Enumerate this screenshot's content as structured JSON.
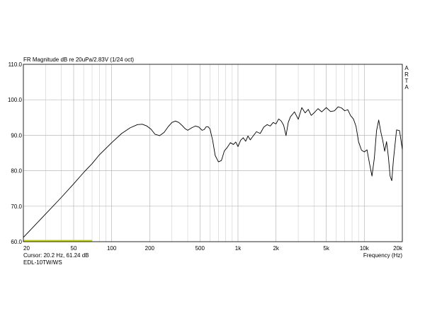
{
  "chart_data": {
    "type": "line",
    "title": "FR Magnitude dB re 20uPa/2.83V (1/24 oct)",
    "xlabel": "Frequency (Hz)",
    "ylabel": "",
    "x_scale": "log",
    "xlim": [
      20,
      20000
    ],
    "ylim": [
      60,
      110
    ],
    "grid": true,
    "brand_vertical": [
      "A",
      "R",
      "T",
      "A"
    ],
    "x_tick_values": [
      20,
      50,
      100,
      200,
      500,
      1000,
      2000,
      5000,
      10000,
      20000
    ],
    "x_tick_labels": [
      "20",
      "50",
      "100",
      "200",
      "500",
      "1k",
      "2k",
      "5k",
      "10k",
      "20k"
    ],
    "x_minor_grid": [
      30,
      40,
      60,
      70,
      80,
      90,
      300,
      400,
      600,
      700,
      800,
      900,
      3000,
      4000,
      6000,
      7000,
      8000,
      9000
    ],
    "y_tick_values": [
      60,
      70,
      80,
      90,
      100,
      110
    ],
    "y_tick_labels": [
      "60.0",
      "70.0",
      "80.0",
      "90.0",
      "100.0",
      "110.0"
    ],
    "cursor_text": "Cursor: 20.2 Hz, 61.24 dB",
    "measurement_name": "EDL-10TW/WS",
    "marker_band": {
      "from_hz": 20,
      "to_hz": 70,
      "db": 60.3,
      "color": "#c8d400"
    },
    "line_color": "#000000",
    "series": [
      {
        "x": [
          20,
          30,
          40,
          50,
          60,
          70,
          80,
          100,
          120,
          140,
          160,
          175,
          190,
          205,
          220,
          240,
          260,
          280,
          300,
          320,
          340,
          360,
          380,
          400,
          430,
          460,
          490,
          520,
          540,
          560,
          580,
          600,
          630,
          660,
          700,
          740,
          780,
          820,
          870,
          920,
          960,
          1000,
          1050,
          1100,
          1150,
          1200,
          1250,
          1300,
          1400,
          1500,
          1600,
          1700,
          1800,
          1900,
          2000,
          2100,
          2200,
          2300,
          2400,
          2500,
          2600,
          2800,
          3000,
          3200,
          3400,
          3600,
          3800,
          4000,
          4300,
          4600,
          5000,
          5400,
          5800,
          6200,
          6600,
          7000,
          7400,
          7800,
          8200,
          8600,
          9000,
          9500,
          10000,
          10500,
          11000,
          11500,
          12000,
          12500,
          13000,
          13500,
          14000,
          14500,
          15000,
          15500,
          16000,
          16500,
          17000,
          18000,
          19000,
          20000
        ],
        "y": [
          61.2,
          67.8,
          72.5,
          76.3,
          79.5,
          82.0,
          84.5,
          87.9,
          90.5,
          92.1,
          93.0,
          93.1,
          92.6,
          91.7,
          90.3,
          89.9,
          90.8,
          92.4,
          93.6,
          94.0,
          93.6,
          92.8,
          91.9,
          91.4,
          92.1,
          92.6,
          92.3,
          91.4,
          91.6,
          92.4,
          92.4,
          91.8,
          88.6,
          84.3,
          82.5,
          82.9,
          85.6,
          86.5,
          87.9,
          87.4,
          88.1,
          86.8,
          88.6,
          89.3,
          88.3,
          89.8,
          88.7,
          89.5,
          91.0,
          90.5,
          92.3,
          93.0,
          92.6,
          93.6,
          93.2,
          94.6,
          94.0,
          92.8,
          89.9,
          93.6,
          95.2,
          96.6,
          94.5,
          97.8,
          96.3,
          97.3,
          95.6,
          96.3,
          97.5,
          96.6,
          97.8,
          96.7,
          96.9,
          98.0,
          97.7,
          96.9,
          97.2,
          95.5,
          94.6,
          92.5,
          88.2,
          85.8,
          85.3,
          85.9,
          82.0,
          78.5,
          83.5,
          91.3,
          94.3,
          91.0,
          88.5,
          85.5,
          88.2,
          84.0,
          78.5,
          77.2,
          83.0,
          91.5,
          91.3,
          86.0
        ]
      }
    ]
  }
}
